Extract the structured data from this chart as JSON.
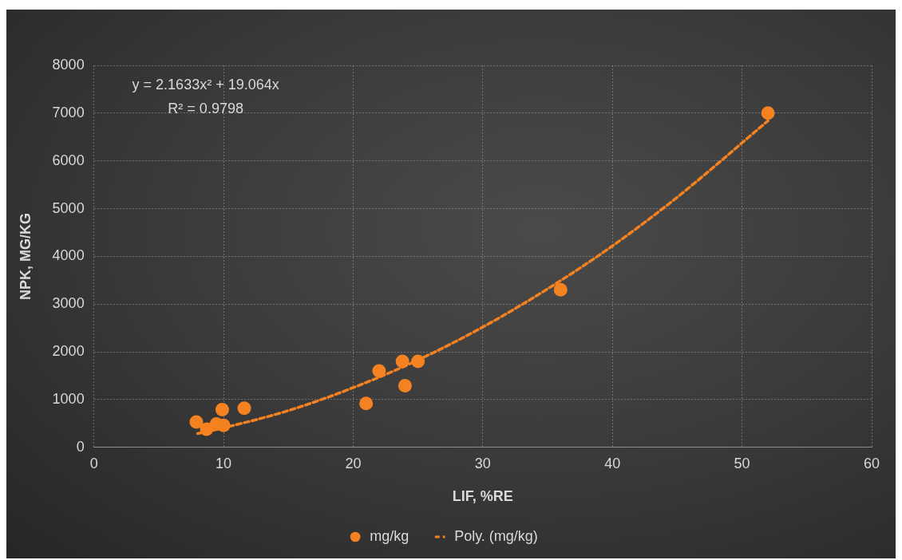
{
  "chart_data": {
    "type": "scatter",
    "xlabel": "LIF, %RE",
    "ylabel": "NPK, MG/KG",
    "annotations": [
      "y = 2.1633x² + 19.064x",
      "R² = 0.9798"
    ],
    "xlim": [
      0,
      60
    ],
    "xticks": [
      0,
      10,
      20,
      30,
      40,
      50,
      60
    ],
    "ylim": [
      0,
      8000
    ],
    "yticks": [
      0,
      1000,
      2000,
      3000,
      4000,
      5000,
      6000,
      7000,
      8000
    ],
    "grid": true,
    "legend": "bottom",
    "series": [
      {
        "name": "mg/kg",
        "color": "#f58220",
        "marker": "circle",
        "x": [
          7.9,
          8.7,
          9.45,
          9.9,
          10.0,
          11.6,
          21.0,
          22.0,
          23.8,
          24.0,
          25.0,
          36.0,
          52.0
        ],
        "values": [
          530,
          380,
          490,
          790,
          460,
          820,
          920,
          1600,
          1800,
          1290,
          1800,
          3300,
          7000
        ]
      },
      {
        "name": "Poly. (mg/kg)",
        "type": "line",
        "color": "#f58220",
        "marker": "none",
        "line_style": "dashed",
        "x": [
          8,
          10,
          15,
          20,
          25,
          30,
          35,
          40,
          45,
          52
        ],
        "values": [
          290,
          410,
          770,
          1250,
          1830,
          2520,
          3320,
          4220,
          5240,
          6840
        ]
      }
    ]
  }
}
